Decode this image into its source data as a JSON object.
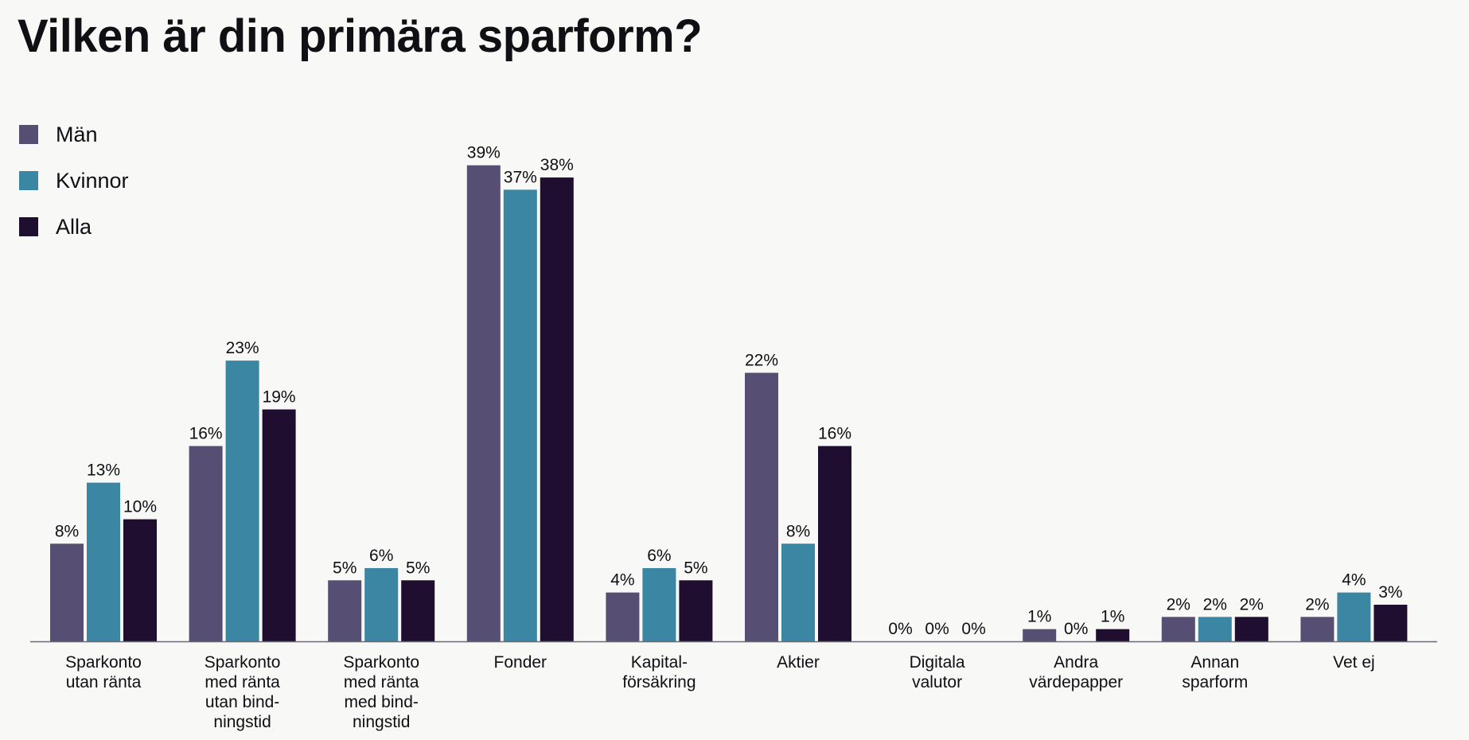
{
  "chart_data": {
    "type": "bar",
    "title": "Vilken är din primära sparform?",
    "legend_position": "top-left",
    "grid": false,
    "ylim": [
      0,
      40
    ],
    "value_suffix": "%",
    "categories": [
      [
        "Sparkonto",
        "utan ränta"
      ],
      [
        "Sparkonto",
        "med ränta",
        "utan bind-",
        "ningstid"
      ],
      [
        "Sparkonto",
        "med ränta",
        "med bind-",
        "ningstid"
      ],
      [
        "Fonder"
      ],
      [
        "Kapital-",
        "försäkring"
      ],
      [
        "Aktier"
      ],
      [
        "Digitala",
        "valutor"
      ],
      [
        "Andra",
        "värdepapper"
      ],
      [
        "Annan",
        "sparform"
      ],
      [
        "Vet ej"
      ]
    ],
    "series": [
      {
        "name": "Män",
        "color": "#574e74",
        "values": [
          8,
          16,
          5,
          39,
          4,
          22,
          0,
          1,
          2,
          2
        ]
      },
      {
        "name": "Kvinnor",
        "color": "#3b87a3",
        "values": [
          13,
          23,
          6,
          37,
          6,
          8,
          0,
          0,
          2,
          4
        ]
      },
      {
        "name": "Alla",
        "color": "#200e31",
        "values": [
          10,
          19,
          5,
          38,
          5,
          16,
          0,
          1,
          2,
          3
        ]
      }
    ]
  }
}
